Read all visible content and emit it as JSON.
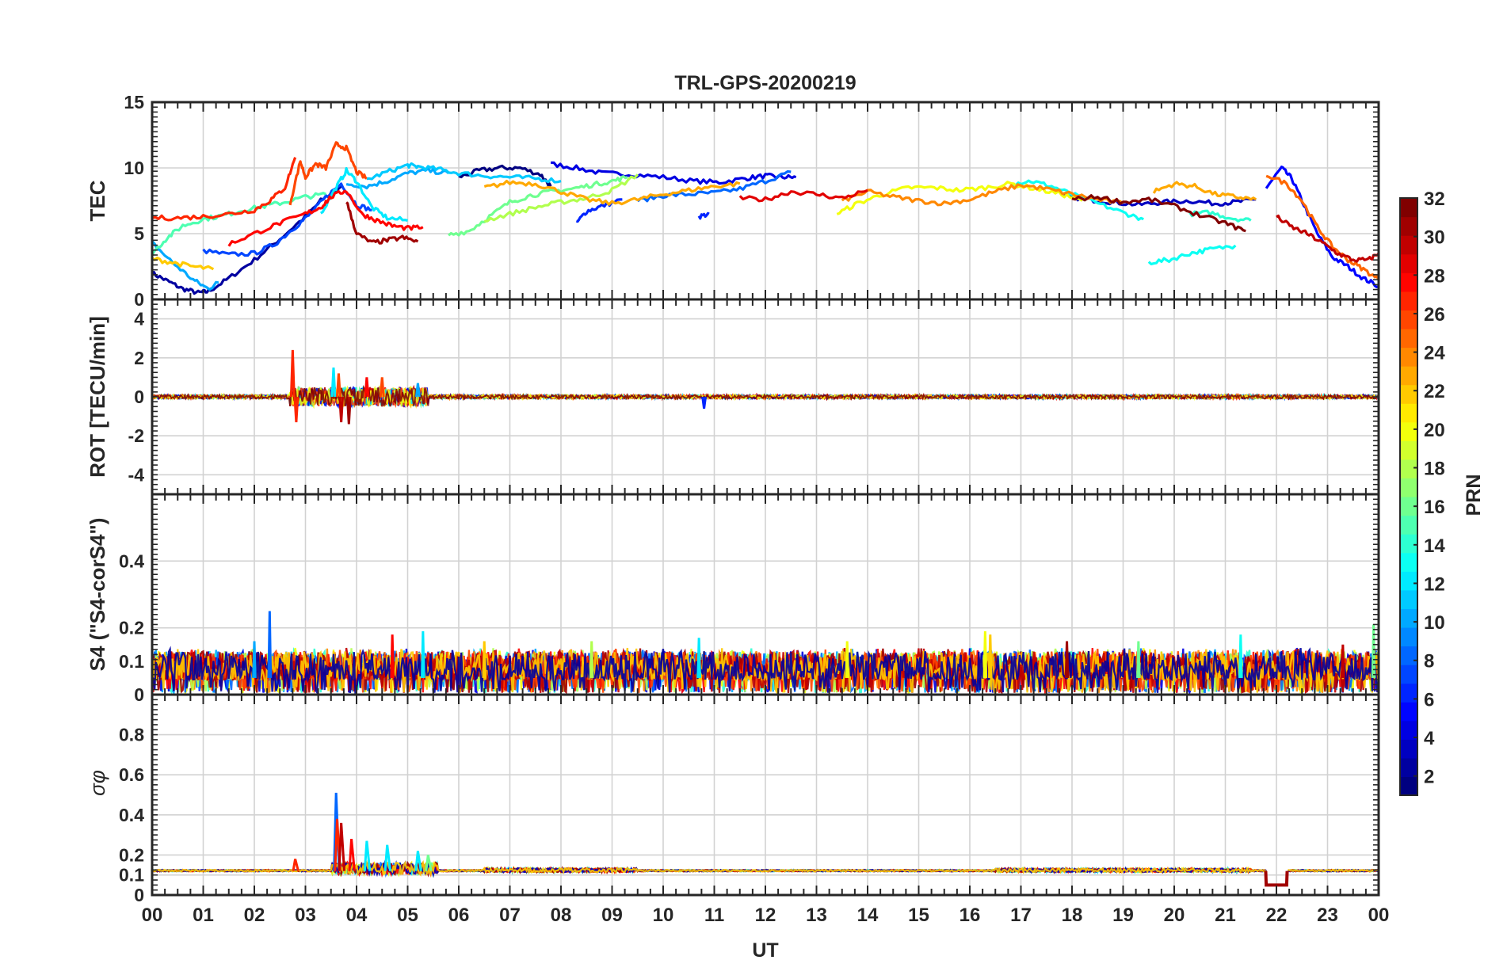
{
  "chart_data": {
    "type": "line",
    "title": "TRL-GPS-20200219",
    "xlabel": "UT",
    "x_ticks": [
      "00",
      "01",
      "02",
      "03",
      "04",
      "05",
      "06",
      "07",
      "08",
      "09",
      "10",
      "11",
      "12",
      "13",
      "14",
      "15",
      "16",
      "17",
      "18",
      "19",
      "20",
      "21",
      "22",
      "23",
      "00"
    ],
    "xlim": [
      0,
      24
    ],
    "panels": [
      {
        "id": "tec",
        "ylabel": "TEC",
        "ylim": [
          0,
          15
        ],
        "y_ticks": [
          0,
          5,
          10,
          15
        ],
        "y_tick_labels": [
          "0",
          "5",
          "10",
          "15"
        ],
        "series": [
          {
            "prn": 2,
            "x": [
              0.0,
              0.3,
              0.6,
              0.9,
              1.1,
              1.5,
              2.0,
              2.5,
              3.0,
              3.3,
              3.7
            ],
            "y": [
              2.0,
              1.4,
              0.8,
              0.5,
              0.6,
              1.6,
              3.0,
              4.6,
              6.3,
              7.5,
              8.6
            ]
          },
          {
            "prn": 4,
            "x": [
              7.8,
              8.3,
              8.8,
              9.4,
              10.0,
              10.6,
              11.1,
              11.6,
              12.0,
              12.3,
              12.6
            ],
            "y": [
              10.3,
              10.0,
              9.6,
              9.5,
              9.3,
              9.0,
              8.9,
              9.2,
              9.4,
              9.3,
              9.3
            ]
          },
          {
            "prn": 1,
            "x": [
              6.0,
              6.4,
              6.8,
              7.2,
              7.6,
              7.8
            ],
            "y": [
              9.3,
              9.8,
              10.0,
              10.0,
              9.5,
              8.6
            ]
          },
          {
            "prn": 3,
            "x": [
              17.8,
              18.3,
              18.8,
              19.3,
              19.8,
              20.3,
              20.8,
              21.2,
              21.6
            ],
            "y": [
              7.9,
              7.6,
              7.4,
              7.2,
              7.4,
              7.5,
              7.3,
              7.4,
              7.6
            ]
          },
          {
            "prn": 5,
            "x": [
              21.8,
              22.1,
              22.3,
              22.5,
              22.8,
              23.1,
              23.4,
              23.7,
              24.0
            ],
            "y": [
              8.5,
              10.0,
              9.2,
              7.5,
              5.0,
              3.2,
              2.5,
              1.6,
              1.0
            ]
          },
          {
            "prn": 6,
            "x": [
              10.7,
              10.9
            ],
            "y": [
              6.3,
              6.5
            ]
          },
          {
            "prn": 6,
            "x": [
              8.3,
              8.5,
              8.8,
              9.2
            ],
            "y": [
              5.8,
              6.7,
              7.1,
              7.6
            ]
          },
          {
            "prn": 7,
            "x": [
              1.0,
              1.5,
              2.0,
              2.4,
              2.8,
              3.1,
              3.4,
              3.7,
              4.0,
              4.3
            ],
            "y": [
              3.7,
              3.4,
              3.5,
              4.2,
              5.5,
              6.5,
              7.8,
              8.8,
              7.2,
              6.8
            ]
          },
          {
            "prn": 8,
            "x": [
              9.5,
              10.0,
              10.5,
              11.0,
              11.5,
              12.0,
              12.5
            ],
            "y": [
              7.5,
              7.9,
              8.0,
              8.1,
              8.4,
              9.0,
              9.7
            ]
          },
          {
            "prn": 10,
            "x": [
              0.0,
              0.4,
              0.8,
              1.1,
              1.3
            ],
            "y": [
              4.3,
              2.8,
              1.5,
              0.8,
              1.3
            ]
          },
          {
            "prn": 10,
            "x": [
              3.8,
              4.2,
              4.6,
              5.0,
              5.4,
              5.8
            ],
            "y": [
              8.8,
              8.6,
              9.0,
              9.6,
              9.8,
              9.6
            ]
          },
          {
            "prn": 11,
            "x": [
              4.2,
              4.6,
              5.0,
              5.2,
              5.6,
              6.0,
              6.5,
              7.0,
              7.5,
              8.0
            ],
            "y": [
              9.1,
              9.7,
              10.2,
              10.1,
              9.9,
              9.6,
              9.4,
              9.3,
              9.2,
              9.0
            ]
          },
          {
            "prn": 12,
            "x": [
              3.3,
              3.6,
              3.8,
              4.0,
              4.3,
              4.6,
              5.0
            ],
            "y": [
              6.5,
              8.5,
              9.8,
              9.0,
              7.0,
              6.2,
              6.0
            ]
          },
          {
            "prn": 13,
            "x": [
              19.5,
              19.9,
              20.3,
              20.7,
              21.2
            ],
            "y": [
              2.8,
              3.0,
              3.5,
              3.8,
              4.1
            ]
          },
          {
            "prn": 13,
            "x": [
              16.8,
              17.2,
              17.6,
              18.0,
              18.5,
              19.0,
              19.4
            ],
            "y": [
              8.8,
              9.0,
              8.6,
              8.0,
              7.3,
              6.6,
              6.1
            ]
          },
          {
            "prn": 14,
            "x": [
              20.3,
              20.7,
              21.1,
              21.5
            ],
            "y": [
              6.5,
              6.6,
              6.2,
              6.0
            ]
          },
          {
            "prn": 15,
            "x": [
              0.0,
              0.3,
              0.6,
              1.0,
              1.4,
              1.8,
              2.2,
              2.6,
              3.0,
              3.4
            ],
            "y": [
              3.5,
              4.7,
              5.6,
              6.1,
              6.4,
              6.8,
              7.1,
              7.4,
              7.8,
              8.0
            ]
          },
          {
            "prn": 16,
            "x": [
              5.8,
              6.2,
              6.6,
              7.0,
              7.4,
              7.8,
              8.2,
              8.6,
              9.0,
              9.3
            ],
            "y": [
              4.9,
              5.2,
              6.3,
              7.4,
              7.9,
              8.2,
              8.4,
              8.7,
              9.0,
              9.3
            ]
          },
          {
            "prn": 18,
            "x": [
              6.5,
              7.0,
              7.5,
              8.0,
              8.5,
              9.0,
              9.5
            ],
            "y": [
              6.0,
              6.5,
              7.0,
              7.4,
              7.7,
              8.3,
              9.5
            ]
          },
          {
            "prn": 20,
            "x": [
              13.4,
              13.8,
              14.3,
              14.8,
              15.3,
              15.8,
              16.3,
              16.8,
              17.3,
              17.8,
              18.2
            ],
            "y": [
              6.5,
              7.3,
              8.0,
              8.5,
              8.5,
              8.3,
              8.5,
              8.8,
              8.4,
              8.0,
              7.5
            ]
          },
          {
            "prn": 22,
            "x": [
              0.0,
              0.4,
              0.8,
              1.2
            ],
            "y": [
              3.1,
              2.8,
              2.5,
              2.3
            ]
          },
          {
            "prn": 23,
            "x": [
              6.5,
              7.0,
              7.5,
              8.0,
              8.5,
              9.0,
              9.5,
              10.0,
              10.5,
              11.0,
              11.5
            ],
            "y": [
              8.5,
              8.9,
              8.8,
              8.2,
              7.6,
              7.3,
              7.6,
              8.0,
              8.3,
              8.6,
              8.8
            ]
          },
          {
            "prn": 23,
            "x": [
              19.6,
              20.0,
              20.4,
              20.8,
              21.2,
              21.6
            ],
            "y": [
              8.2,
              8.8,
              8.6,
              8.0,
              7.8,
              7.6
            ]
          },
          {
            "prn": 24,
            "x": [
              13.5,
              14.0,
              14.5,
              15.0,
              15.5,
              16.0,
              16.5,
              17.0,
              17.5,
              18.0,
              18.5,
              19.0
            ],
            "y": [
              7.5,
              8.2,
              7.8,
              7.5,
              7.3,
              7.6,
              8.2,
              8.7,
              8.4,
              8.0,
              7.6,
              7.3
            ]
          },
          {
            "prn": 25,
            "x": [
              21.8,
              22.2,
              22.5,
              22.8,
              23.1,
              23.4,
              23.7,
              24.0
            ],
            "y": [
              9.5,
              8.8,
              7.5,
              5.5,
              4.0,
              3.0,
              2.3,
              1.5
            ]
          },
          {
            "prn": 26,
            "x": [
              2.7,
              2.9,
              3.0,
              3.2,
              3.4,
              3.6,
              3.8,
              4.0,
              4.2
            ],
            "y": [
              7.3,
              10.5,
              9.3,
              10.3,
              10.0,
              11.8,
              11.5,
              9.7,
              9.2
            ]
          },
          {
            "prn": 27,
            "x": [
              0.0,
              0.5,
              1.0,
              1.5,
              2.0,
              2.3,
              2.6,
              2.8
            ],
            "y": [
              6.2,
              6.2,
              6.3,
              6.5,
              6.8,
              7.5,
              8.5,
              10.8
            ]
          },
          {
            "prn": 28,
            "x": [
              1.5,
              2.0,
              2.5,
              3.0,
              3.3,
              3.5,
              3.8,
              4.1,
              4.4,
              4.7,
              5.0,
              5.3
            ],
            "y": [
              4.2,
              5.0,
              5.8,
              6.5,
              7.0,
              7.8,
              8.3,
              6.5,
              6.0,
              5.6,
              5.4,
              5.5
            ]
          },
          {
            "prn": 29,
            "x": [
              11.5,
              12.0,
              12.5,
              13.0,
              13.5,
              14.0
            ],
            "y": [
              7.7,
              7.6,
              8.2,
              8.0,
              7.7,
              8.3
            ]
          },
          {
            "prn": 30,
            "x": [
              22.0,
              22.3,
              22.6,
              22.9,
              23.2,
              23.5,
              23.8,
              24.0
            ],
            "y": [
              6.3,
              5.5,
              5.0,
              4.3,
              3.5,
              3.0,
              3.0,
              3.5
            ]
          },
          {
            "prn": 31,
            "x": [
              3.8,
              4.0,
              4.3,
              4.6,
              4.9,
              5.2
            ],
            "y": [
              7.5,
              5.0,
              4.3,
              4.5,
              4.7,
              4.4
            ]
          },
          {
            "prn": 32,
            "x": [
              18.0,
              18.5,
              19.0,
              19.5,
              20.0,
              20.5,
              21.0,
              21.4
            ],
            "y": [
              7.6,
              7.8,
              7.4,
              7.6,
              7.1,
              6.4,
              5.8,
              5.2
            ]
          }
        ]
      },
      {
        "id": "rot",
        "ylabel": "ROT [TECU/min]",
        "ylim": [
          -5,
          5
        ],
        "y_ticks": [
          -4,
          -2,
          0,
          2,
          4
        ],
        "y_tick_labels": [
          "-4",
          "-2",
          "0",
          "2",
          "4"
        ],
        "spikes": [
          {
            "x": 2.75,
            "y": 2.4,
            "prn": 27
          },
          {
            "x": 2.82,
            "y": -1.3,
            "prn": 27
          },
          {
            "x": 3.55,
            "y": 1.5,
            "prn": 12
          },
          {
            "x": 3.65,
            "y": 1.2,
            "prn": 26
          },
          {
            "x": 3.7,
            "y": -1.3,
            "prn": 30
          },
          {
            "x": 3.85,
            "y": -1.4,
            "prn": 31
          },
          {
            "x": 4.2,
            "y": 1.0,
            "prn": 28
          },
          {
            "x": 4.5,
            "y": 1.0,
            "prn": 26
          },
          {
            "x": 5.2,
            "y": 0.7,
            "prn": 10
          },
          {
            "x": 10.8,
            "y": -0.6,
            "prn": 6
          }
        ]
      },
      {
        "id": "s4",
        "ylabel": "S4 (\"S4-corS4\")",
        "ylim": [
          0,
          0.6
        ],
        "y_ticks": [
          0,
          0.1,
          0.2,
          0.4
        ],
        "y_tick_labels": [
          "0",
          "0.1",
          "0.2",
          "0.4"
        ],
        "spikes": [
          {
            "x": 2.3,
            "y": 0.25,
            "prn": 8
          },
          {
            "x": 2.0,
            "y": 0.16,
            "prn": 10
          },
          {
            "x": 4.7,
            "y": 0.18,
            "prn": 28
          },
          {
            "x": 5.3,
            "y": 0.19,
            "prn": 12
          },
          {
            "x": 6.5,
            "y": 0.16,
            "prn": 22
          },
          {
            "x": 8.6,
            "y": 0.16,
            "prn": 18
          },
          {
            "x": 10.7,
            "y": 0.17,
            "prn": 12
          },
          {
            "x": 13.6,
            "y": 0.16,
            "prn": 20
          },
          {
            "x": 16.3,
            "y": 0.19,
            "prn": 20
          },
          {
            "x": 16.4,
            "y": 0.18,
            "prn": 22
          },
          {
            "x": 17.9,
            "y": 0.16,
            "prn": 31
          },
          {
            "x": 19.3,
            "y": 0.16,
            "prn": 16
          },
          {
            "x": 21.3,
            "y": 0.18,
            "prn": 13
          },
          {
            "x": 23.3,
            "y": 0.15,
            "prn": 30
          },
          {
            "x": 23.9,
            "y": 0.21,
            "prn": 16
          }
        ]
      },
      {
        "id": "sigma_phi",
        "ylabel": "σφ",
        "ylim": [
          0,
          1
        ],
        "y_ticks": [
          0,
          0.1,
          0.2,
          0.4,
          0.6,
          0.8
        ],
        "y_tick_labels": [
          "0",
          "0.1",
          "0.2",
          "0.4",
          "0.6",
          "0.8"
        ],
        "baseline": 0.12,
        "spikes": [
          {
            "x": 2.8,
            "y": 0.18,
            "prn": 27
          },
          {
            "x": 3.6,
            "y": 0.51,
            "prn": 8
          },
          {
            "x": 3.62,
            "y": 0.38,
            "prn": 27
          },
          {
            "x": 3.7,
            "y": 0.36,
            "prn": 30
          },
          {
            "x": 3.9,
            "y": 0.28,
            "prn": 28
          },
          {
            "x": 4.2,
            "y": 0.27,
            "prn": 12
          },
          {
            "x": 4.6,
            "y": 0.25,
            "prn": 12
          },
          {
            "x": 5.2,
            "y": 0.22,
            "prn": 12
          },
          {
            "x": 5.4,
            "y": 0.2,
            "prn": 16
          }
        ],
        "dip": {
          "x_start": 21.8,
          "x_end": 22.2,
          "y": 0.05,
          "prn": 31
        }
      }
    ],
    "colorbar": {
      "label": "PRN",
      "range": [
        1,
        32
      ],
      "ticks": [
        "2",
        "4",
        "6",
        "8",
        "10",
        "12",
        "14",
        "16",
        "18",
        "20",
        "22",
        "24",
        "26",
        "28",
        "30",
        "32"
      ],
      "colormap": "jet"
    }
  }
}
